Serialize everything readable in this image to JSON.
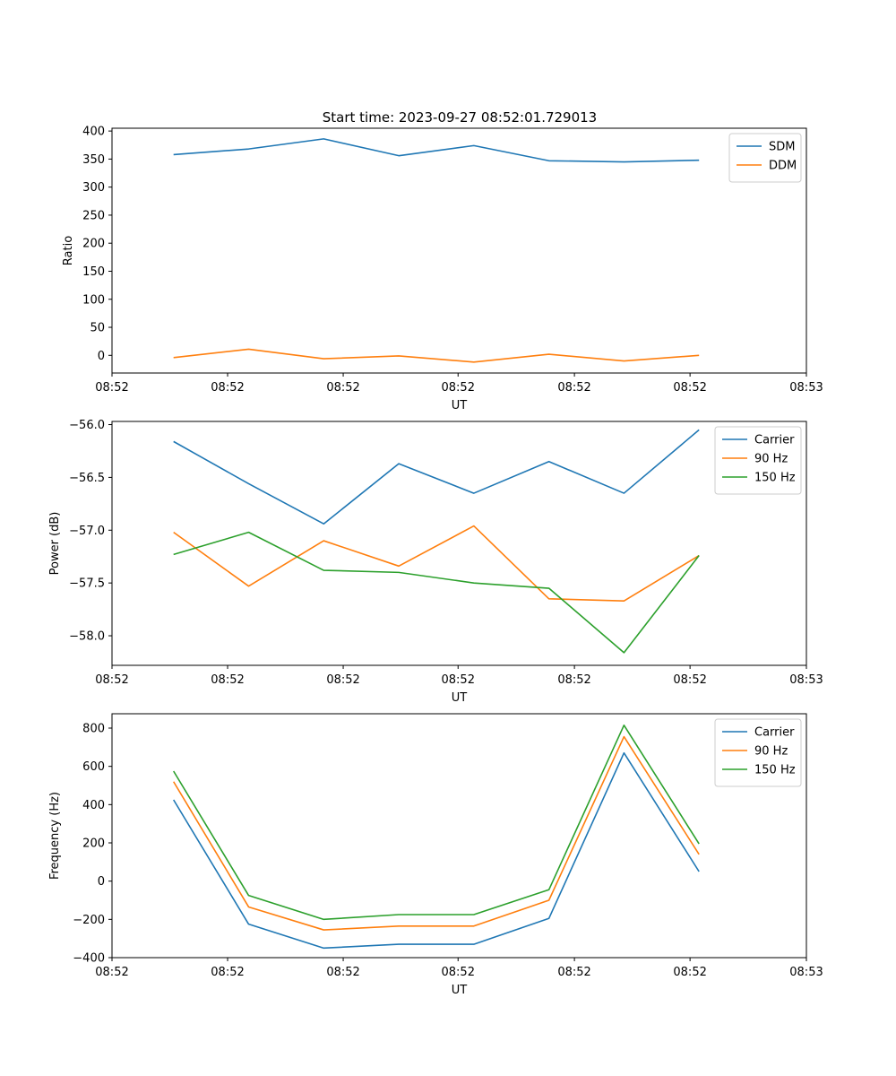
{
  "figure_title": "Start time: 2023-09-27 08:52:01.729013",
  "chart_data": [
    {
      "type": "line",
      "title": "Start time: 2023-09-27 08:52:01.729013",
      "xlabel": "UT",
      "ylabel": "Ratio",
      "x": [
        1,
        2,
        3,
        4,
        5,
        6,
        7,
        8
      ],
      "xlim": [
        0.18,
        9.43
      ],
      "ylim": [
        -31.5,
        405
      ],
      "xtick_values": [
        0.18,
        1.72,
        3.26,
        4.79,
        6.34,
        7.88,
        9.43
      ],
      "xtick_labels": [
        "08:52",
        "08:52",
        "08:52",
        "08:52",
        "08:52",
        "08:52",
        "08:53"
      ],
      "ytick_values": [
        0,
        50,
        100,
        150,
        200,
        250,
        300,
        350,
        400
      ],
      "ytick_labels": [
        "0",
        "50",
        "100",
        "150",
        "200",
        "250",
        "300",
        "350",
        "400"
      ],
      "grid": false,
      "legend_position": "top-right",
      "series": [
        {
          "name": "SDM",
          "color": "#1f77b4",
          "values": [
            358,
            368,
            386,
            356,
            374,
            347,
            345,
            348
          ]
        },
        {
          "name": "DDM",
          "color": "#ff7f0e",
          "values": [
            -4,
            11,
            -6,
            -1,
            -12,
            2,
            -10,
            0
          ]
        }
      ]
    },
    {
      "type": "line",
      "title": "",
      "xlabel": "UT",
      "ylabel": "Power (dB)",
      "x": [
        1,
        2,
        3,
        4,
        5,
        6,
        7,
        8
      ],
      "xlim": [
        0.18,
        9.43
      ],
      "ylim": [
        -58.28,
        -55.97
      ],
      "xtick_values": [
        0.18,
        1.72,
        3.26,
        4.79,
        6.34,
        7.88,
        9.43
      ],
      "xtick_labels": [
        "08:52",
        "08:52",
        "08:52",
        "08:52",
        "08:52",
        "08:52",
        "08:53"
      ],
      "ytick_values": [
        -58.0,
        -57.5,
        -57.0,
        -56.5,
        -56.0
      ],
      "ytick_labels": [
        "−58.0",
        "−57.5",
        "−57.0",
        "−56.5",
        "−56.0"
      ],
      "grid": false,
      "legend_position": "top-right",
      "series": [
        {
          "name": "Carrier",
          "color": "#1f77b4",
          "values": [
            -56.16,
            -56.56,
            -56.94,
            -56.37,
            -56.65,
            -56.35,
            -56.65,
            -56.05
          ]
        },
        {
          "name": "90 Hz",
          "color": "#ff7f0e",
          "values": [
            -57.02,
            -57.53,
            -57.1,
            -57.34,
            -56.96,
            -57.65,
            -57.67,
            -57.24
          ]
        },
        {
          "name": "150 Hz",
          "color": "#2ca02c",
          "values": [
            -57.23,
            -57.02,
            -57.38,
            -57.4,
            -57.5,
            -57.55,
            -58.16,
            -57.24
          ]
        }
      ]
    },
    {
      "type": "line",
      "title": "",
      "xlabel": "UT",
      "ylabel": "Frequency (Hz)",
      "x": [
        1,
        2,
        3,
        4,
        5,
        6,
        7,
        8
      ],
      "xlim": [
        0.18,
        9.43
      ],
      "ylim": [
        -400,
        875
      ],
      "xtick_values": [
        0.18,
        1.72,
        3.26,
        4.79,
        6.34,
        7.88,
        9.43
      ],
      "xtick_labels": [
        "08:52",
        "08:52",
        "08:52",
        "08:52",
        "08:52",
        "08:52",
        "08:53"
      ],
      "ytick_values": [
        -400,
        -200,
        0,
        200,
        400,
        600,
        800
      ],
      "ytick_labels": [
        "−400",
        "−200",
        "0",
        "200",
        "400",
        "600",
        "800"
      ],
      "grid": false,
      "legend_position": "top-right",
      "series": [
        {
          "name": "Carrier",
          "color": "#1f77b4",
          "values": [
            425,
            -225,
            -350,
            -330,
            -330,
            -195,
            670,
            50
          ]
        },
        {
          "name": "90 Hz",
          "color": "#ff7f0e",
          "values": [
            520,
            -135,
            -255,
            -235,
            -235,
            -100,
            755,
            140
          ]
        },
        {
          "name": "150 Hz",
          "color": "#2ca02c",
          "values": [
            575,
            -75,
            -200,
            -175,
            -175,
            -45,
            815,
            195
          ]
        }
      ]
    }
  ]
}
